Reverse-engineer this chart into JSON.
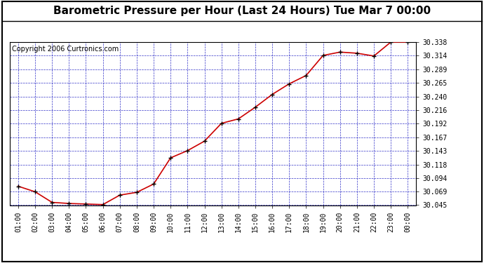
{
  "title": "Barometric Pressure per Hour (Last 24 Hours) Tue Mar 7 00:00",
  "copyright": "Copyright 2006 Curtronics.com",
  "x_labels": [
    "01:00",
    "02:00",
    "03:00",
    "04:00",
    "05:00",
    "06:00",
    "07:00",
    "08:00",
    "09:00",
    "10:00",
    "11:00",
    "12:00",
    "13:00",
    "14:00",
    "15:00",
    "16:00",
    "17:00",
    "18:00",
    "19:00",
    "20:00",
    "21:00",
    "22:00",
    "23:00",
    "00:00"
  ],
  "y_values": [
    30.079,
    30.069,
    30.05,
    30.048,
    30.047,
    30.046,
    30.063,
    30.068,
    30.083,
    30.13,
    30.143,
    30.16,
    30.192,
    30.2,
    30.221,
    30.244,
    30.263,
    30.278,
    30.314,
    30.32,
    30.318,
    30.313,
    30.338,
    30.338
  ],
  "ylim_min": 30.045,
  "ylim_max": 30.338,
  "yticks": [
    30.045,
    30.069,
    30.094,
    30.118,
    30.143,
    30.167,
    30.192,
    30.216,
    30.24,
    30.265,
    30.289,
    30.314,
    30.338
  ],
  "line_color": "#cc0000",
  "marker_color": "#000000",
  "plot_bg": "#ffffff",
  "outer_bg": "#cce5ff",
  "grid_color": "#0000bb",
  "title_fontsize": 11,
  "copyright_fontsize": 7,
  "tick_fontsize": 7
}
